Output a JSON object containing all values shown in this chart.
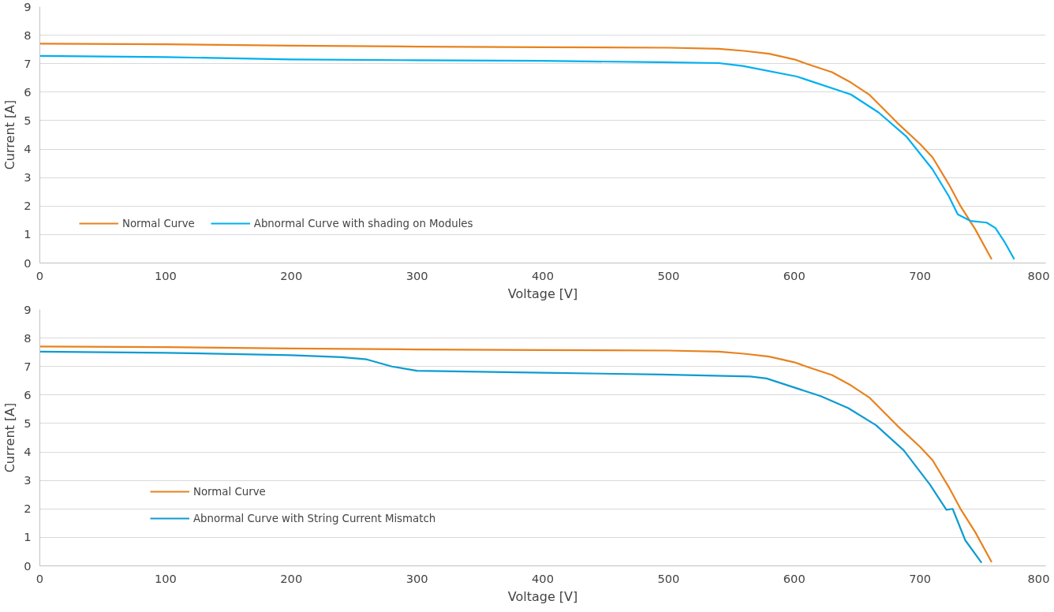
{
  "chart_data": [
    {
      "type": "line",
      "xlabel": "Voltage [V]",
      "ylabel": "Current [A]",
      "xlim": [
        0,
        800
      ],
      "ylim": [
        0,
        9
      ],
      "xticks": [
        0,
        100,
        200,
        300,
        400,
        500,
        600,
        700,
        800
      ],
      "yticks": [
        0,
        1,
        2,
        3,
        4,
        5,
        6,
        7,
        8,
        9
      ],
      "grid": "y",
      "legend": "bottom left",
      "marker": "none",
      "line_style": "solid",
      "series": [
        {
          "name": "Normal Curve",
          "color": "#e8821e",
          "x": [
            0,
            100,
            200,
            300,
            400,
            500,
            540,
            560,
            580,
            600,
            611,
            630,
            645,
            660,
            682,
            700,
            710,
            723,
            732,
            744,
            757
          ],
          "values": [
            7.7,
            7.68,
            7.63,
            7.6,
            7.58,
            7.56,
            7.52,
            7.45,
            7.35,
            7.15,
            6.98,
            6.7,
            6.34,
            5.9,
            4.92,
            4.18,
            3.71,
            2.76,
            2.02,
            1.18,
            0.13
          ]
        },
        {
          "name": "Abnormal Curve with shading on Modules",
          "color": "#00b0f0",
          "x": [
            0,
            100,
            200,
            300,
            400,
            494,
            540,
            559,
            602,
            645,
            667,
            689,
            710,
            723,
            730,
            740,
            753,
            760,
            767,
            775
          ],
          "values": [
            7.27,
            7.23,
            7.15,
            7.12,
            7.1,
            7.05,
            7.02,
            6.92,
            6.55,
            5.92,
            5.29,
            4.45,
            3.29,
            2.34,
            1.71,
            1.48,
            1.42,
            1.23,
            0.76,
            0.13
          ]
        }
      ]
    },
    {
      "type": "line",
      "xlabel": "Voltage [V]",
      "ylabel": "Current [A]",
      "xlim": [
        0,
        800
      ],
      "ylim": [
        0,
        9
      ],
      "xticks": [
        0,
        100,
        200,
        300,
        400,
        500,
        600,
        700,
        800
      ],
      "yticks": [
        0,
        1,
        2,
        3,
        4,
        5,
        6,
        7,
        8,
        9
      ],
      "grid": "y",
      "legend": "bottom left",
      "marker": "none",
      "line_style": "solid",
      "series": [
        {
          "name": "Normal Curve",
          "color": "#e8821e",
          "x": [
            0,
            100,
            200,
            300,
            400,
            500,
            540,
            560,
            580,
            600,
            611,
            630,
            645,
            660,
            682,
            700,
            710,
            723,
            732,
            744,
            757
          ],
          "values": [
            7.7,
            7.68,
            7.63,
            7.6,
            7.58,
            7.56,
            7.52,
            7.45,
            7.35,
            7.15,
            6.98,
            6.7,
            6.34,
            5.9,
            4.92,
            4.18,
            3.71,
            2.76,
            2.02,
            1.18,
            0.13
          ]
        },
        {
          "name": "Abnormal Curve with String Current Mismatch",
          "color": "#0e9bd0",
          "x": [
            0,
            100,
            200,
            240,
            260,
            280,
            300,
            400,
            494,
            565,
            578,
            621,
            643,
            665,
            687,
            708,
            721,
            726,
            736,
            749
          ],
          "values": [
            7.52,
            7.48,
            7.4,
            7.33,
            7.25,
            7.0,
            6.85,
            6.78,
            6.72,
            6.65,
            6.58,
            5.96,
            5.54,
            4.94,
            4.06,
            2.85,
            1.97,
            2.0,
            0.9,
            0.11
          ]
        }
      ]
    }
  ]
}
